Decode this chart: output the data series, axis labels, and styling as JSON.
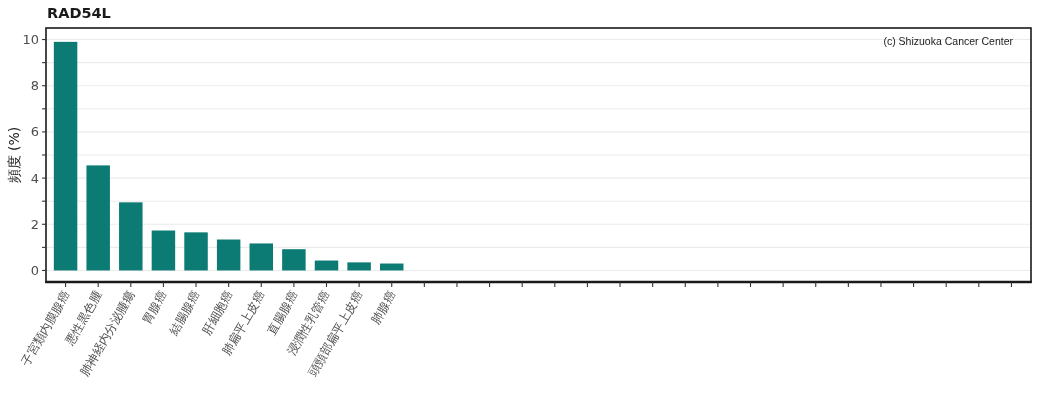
{
  "chart_data": {
    "type": "bar",
    "title": "RAD54L",
    "ylabel": "頻度 (%)",
    "categories": [
      "子宮類内膜腺癌",
      "悪性黒色腫",
      "肺神経内分泌腫瘍",
      "胃腺癌",
      "結腸腺癌",
      "肝細胞癌",
      "肺扁平上皮癌",
      "直腸腺癌",
      "浸潤性乳管癌",
      "頭頸部扁平上皮癌",
      "肺腺癌",
      null,
      null,
      null,
      null,
      null,
      null,
      null,
      null,
      null,
      null,
      null,
      null,
      null,
      null,
      null,
      null,
      null,
      null,
      null
    ],
    "values": [
      9.9,
      4.55,
      2.95,
      1.73,
      1.65,
      1.34,
      1.17,
      0.92,
      0.43,
      0.35,
      0.3,
      null,
      null,
      null,
      null,
      null,
      null,
      null,
      null,
      null,
      null,
      null,
      null,
      null,
      null,
      null,
      null,
      null,
      null,
      null
    ],
    "color": "#0c7b73",
    "ylim": [
      -0.5,
      10.5
    ],
    "yticks": [
      0,
      {
        "value": 1,
        "label": null
      },
      2,
      {
        "value": 3,
        "label": null
      },
      4,
      {
        "value": 5,
        "label": null
      },
      6,
      {
        "value": 7,
        "label": null
      },
      8,
      {
        "value": 9,
        "label": null
      },
      10
    ],
    "grid": "y",
    "annotations": [
      "(c) Shizuoka Cancer Center"
    ]
  }
}
